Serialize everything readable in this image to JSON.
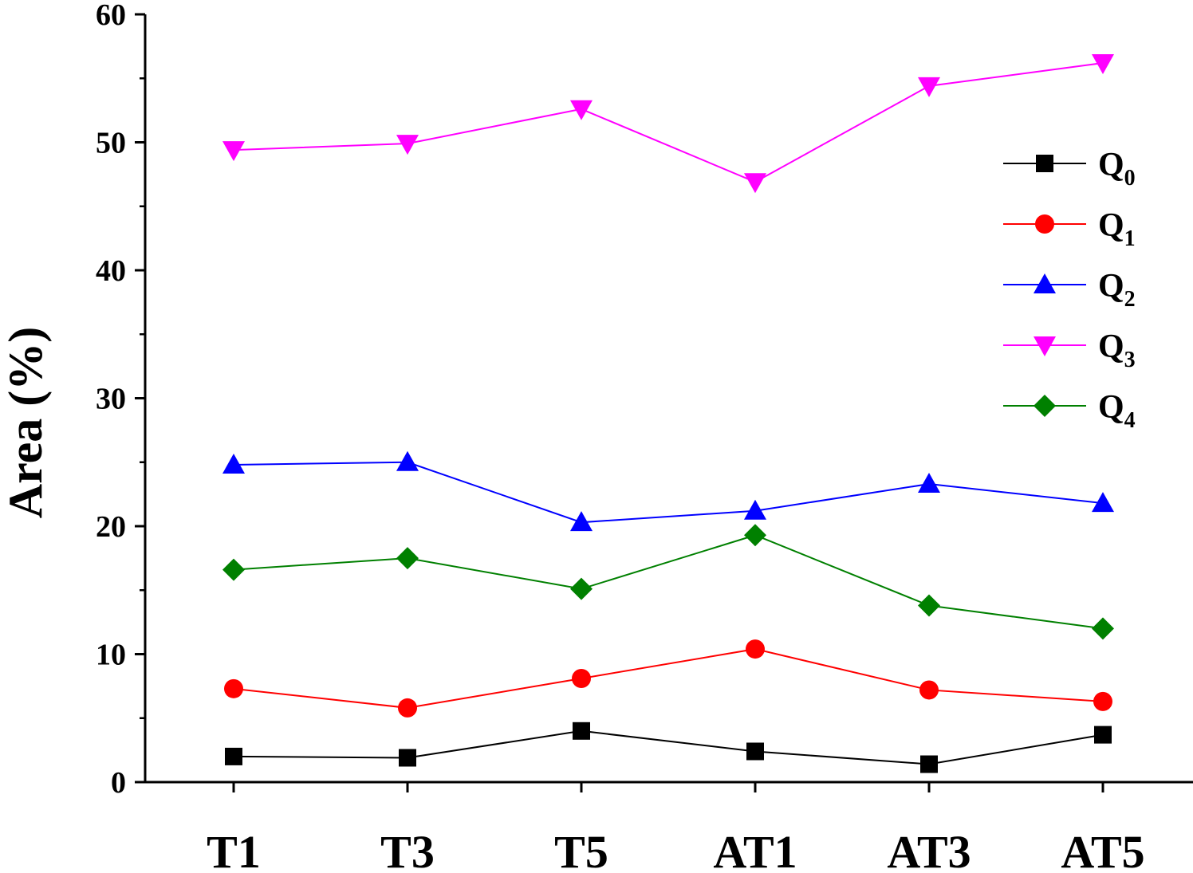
{
  "chart_data": {
    "type": "line",
    "categories": [
      "T1",
      "T3",
      "T5",
      "AT1",
      "AT3",
      "AT5"
    ],
    "ylabel": "Area (%)",
    "ylim": [
      0,
      60
    ],
    "yticks": [
      0,
      10,
      20,
      30,
      40,
      50,
      60
    ],
    "grid": false,
    "legend_position": "top-right",
    "series": [
      {
        "name": "Q",
        "subscript": "0",
        "color": "#000000",
        "marker": "square",
        "values": [
          2.0,
          1.9,
          4.0,
          2.4,
          1.4,
          3.7
        ]
      },
      {
        "name": "Q",
        "subscript": "1",
        "color": "#ff0000",
        "marker": "circle",
        "values": [
          7.3,
          5.8,
          8.1,
          10.4,
          7.2,
          6.3
        ]
      },
      {
        "name": "Q",
        "subscript": "2",
        "color": "#0000ff",
        "marker": "triangle-up",
        "values": [
          24.8,
          25.0,
          20.3,
          21.2,
          23.3,
          21.8
        ]
      },
      {
        "name": "Q",
        "subscript": "3",
        "color": "#ff00ff",
        "marker": "triangle-down",
        "values": [
          49.4,
          49.9,
          52.6,
          46.9,
          54.4,
          56.2
        ]
      },
      {
        "name": "Q",
        "subscript": "4",
        "color": "#008000",
        "marker": "diamond",
        "values": [
          16.6,
          17.5,
          15.1,
          19.3,
          13.8,
          12.0
        ]
      }
    ]
  }
}
